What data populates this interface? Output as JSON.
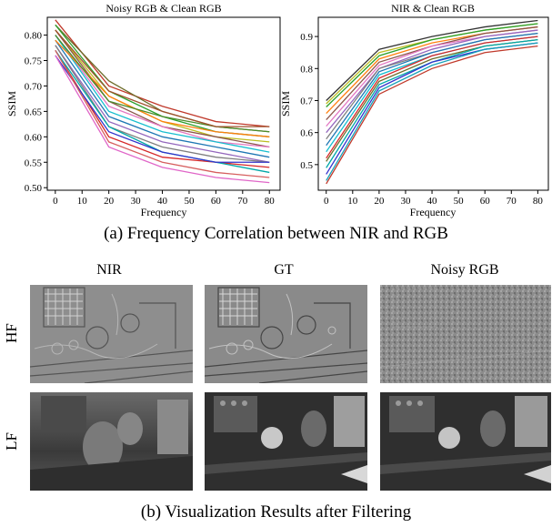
{
  "chart_data": [
    {
      "type": "line",
      "title": "Noisy RGB & Clean RGB",
      "xlabel": "Frequency",
      "ylabel": "SSIM",
      "x": [
        0,
        20,
        40,
        60,
        80
      ],
      "xticks": [
        "0",
        "10",
        "20",
        "30",
        "40",
        "50",
        "60",
        "70",
        "80"
      ],
      "xlim": [
        -3,
        84
      ],
      "ylim": [
        0.495,
        0.835
      ],
      "yticks": [
        "0.50",
        "0.55",
        "0.60",
        "0.65",
        "0.70",
        "0.75",
        "0.80"
      ],
      "series": [
        {
          "color": "#c0392b",
          "values": [
            0.83,
            0.7,
            0.66,
            0.63,
            0.62
          ]
        },
        {
          "color": "#6d6d2a",
          "values": [
            0.82,
            0.71,
            0.65,
            0.62,
            0.61
          ]
        },
        {
          "color": "#2ca02c",
          "values": [
            0.82,
            0.69,
            0.64,
            0.61,
            0.6
          ]
        },
        {
          "color": "#bcbd22",
          "values": [
            0.81,
            0.68,
            0.63,
            0.6,
            0.59
          ]
        },
        {
          "color": "#8c564b",
          "values": [
            0.81,
            0.67,
            0.62,
            0.6,
            0.58
          ]
        },
        {
          "color": "#e377c2",
          "values": [
            0.8,
            0.66,
            0.62,
            0.59,
            0.58
          ]
        },
        {
          "color": "#17becf",
          "values": [
            0.8,
            0.65,
            0.61,
            0.59,
            0.57
          ]
        },
        {
          "color": "#1f77b4",
          "values": [
            0.79,
            0.64,
            0.6,
            0.58,
            0.56
          ]
        },
        {
          "color": "#ff7f0e",
          "values": [
            0.79,
            0.68,
            0.63,
            0.61,
            0.6
          ]
        },
        {
          "color": "#9467bd",
          "values": [
            0.78,
            0.63,
            0.59,
            0.57,
            0.55
          ]
        },
        {
          "color": "#7f7f7f",
          "values": [
            0.78,
            0.62,
            0.58,
            0.56,
            0.55
          ]
        },
        {
          "color": "#d62728",
          "values": [
            0.77,
            0.6,
            0.56,
            0.55,
            0.54
          ]
        },
        {
          "color": "#00a8a8",
          "values": [
            0.77,
            0.62,
            0.57,
            0.55,
            0.53
          ]
        },
        {
          "color": "#3333cc",
          "values": [
            0.76,
            0.61,
            0.57,
            0.55,
            0.55
          ]
        },
        {
          "color": "#e066c8",
          "values": [
            0.76,
            0.58,
            0.54,
            0.52,
            0.51
          ]
        },
        {
          "color": "#d65f5f",
          "values": [
            0.77,
            0.59,
            0.55,
            0.53,
            0.52
          ]
        },
        {
          "color": "#4c8c2b",
          "values": [
            0.8,
            0.67,
            0.64,
            0.62,
            0.61
          ]
        },
        {
          "color": "#a0522d",
          "values": [
            0.81,
            0.69,
            0.65,
            0.62,
            0.62
          ]
        }
      ]
    },
    {
      "type": "line",
      "title": "NIR & Clean RGB",
      "xlabel": "Frequency",
      "ylabel": "SSIM",
      "x": [
        0,
        20,
        40,
        60,
        80
      ],
      "xticks": [
        "0",
        "10",
        "20",
        "30",
        "40",
        "50",
        "60",
        "70",
        "80"
      ],
      "xlim": [
        -3,
        84
      ],
      "ylim": [
        0.42,
        0.96
      ],
      "yticks": [
        "0.5",
        "0.6",
        "0.7",
        "0.8",
        "0.9"
      ],
      "series": [
        {
          "color": "#333333",
          "values": [
            0.7,
            0.86,
            0.9,
            0.93,
            0.95
          ]
        },
        {
          "color": "#bcbd22",
          "values": [
            0.69,
            0.85,
            0.89,
            0.92,
            0.94
          ]
        },
        {
          "color": "#2ca02c",
          "values": [
            0.68,
            0.84,
            0.89,
            0.92,
            0.94
          ]
        },
        {
          "color": "#ff7f0e",
          "values": [
            0.66,
            0.83,
            0.88,
            0.91,
            0.93
          ]
        },
        {
          "color": "#8c564b",
          "values": [
            0.64,
            0.82,
            0.87,
            0.91,
            0.93
          ]
        },
        {
          "color": "#e377c2",
          "values": [
            0.62,
            0.81,
            0.87,
            0.9,
            0.92
          ]
        },
        {
          "color": "#9467bd",
          "values": [
            0.6,
            0.8,
            0.86,
            0.9,
            0.92
          ]
        },
        {
          "color": "#7f7f7f",
          "values": [
            0.58,
            0.8,
            0.85,
            0.89,
            0.91
          ]
        },
        {
          "color": "#1f77b4",
          "values": [
            0.56,
            0.79,
            0.85,
            0.89,
            0.91
          ]
        },
        {
          "color": "#17becf",
          "values": [
            0.54,
            0.78,
            0.84,
            0.88,
            0.9
          ]
        },
        {
          "color": "#d62728",
          "values": [
            0.52,
            0.77,
            0.84,
            0.88,
            0.9
          ]
        },
        {
          "color": "#6d6d2a",
          "values": [
            0.51,
            0.76,
            0.83,
            0.87,
            0.89
          ]
        },
        {
          "color": "#00a8a8",
          "values": [
            0.49,
            0.75,
            0.82,
            0.87,
            0.89
          ]
        },
        {
          "color": "#3333cc",
          "values": [
            0.47,
            0.74,
            0.82,
            0.86,
            0.88
          ]
        },
        {
          "color": "#17a2b8",
          "values": [
            0.45,
            0.73,
            0.81,
            0.86,
            0.88
          ]
        },
        {
          "color": "#c0392b",
          "values": [
            0.44,
            0.72,
            0.8,
            0.85,
            0.87
          ]
        }
      ]
    }
  ],
  "captions": {
    "a": "(a) Frequency Correlation between NIR and RGB",
    "b": "(b) Visualization Results after Filtering"
  },
  "grid": {
    "columns": [
      "NIR",
      "GT",
      "Noisy RGB"
    ],
    "rows": [
      "HF",
      "LF"
    ]
  }
}
